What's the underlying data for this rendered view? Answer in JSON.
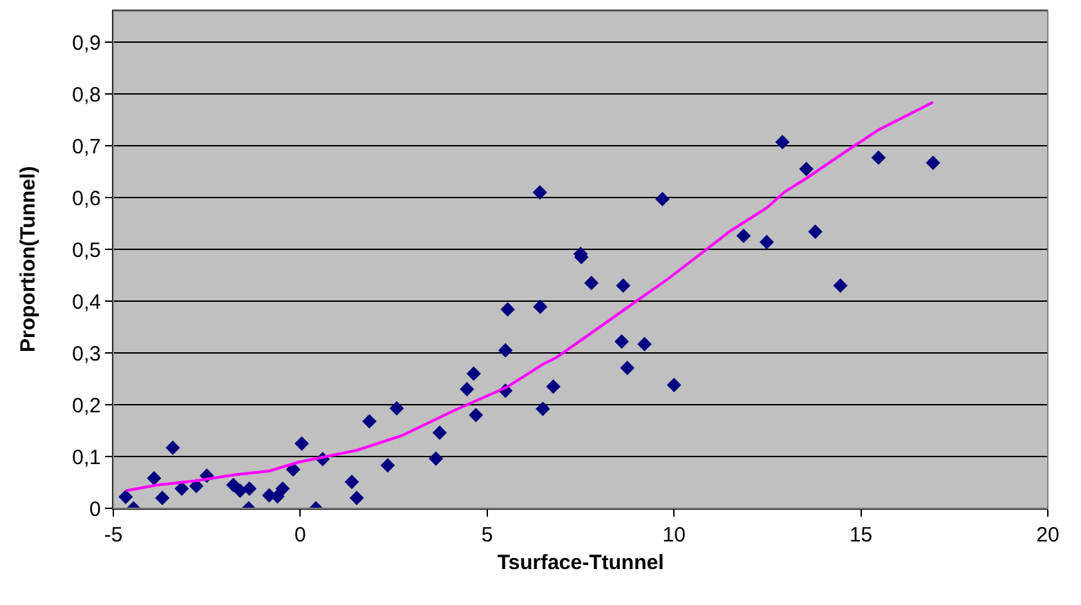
{
  "chart_data": {
    "type": "scatter",
    "xlabel": "Tsurface-Ttunnel",
    "ylabel": "Proportion(Tunnel)",
    "xlim": [
      -5,
      20
    ],
    "xticks": [
      -5,
      0,
      5,
      10,
      15,
      20
    ],
    "ylim": [
      0,
      0.96
    ],
    "yticks": [
      {
        "value": 0,
        "label": "0"
      },
      {
        "value": 0.1,
        "label": "0,1"
      },
      {
        "value": 0.2,
        "label": "0,2"
      },
      {
        "value": 0.3,
        "label": "0,3"
      },
      {
        "value": 0.4,
        "label": "0,4"
      },
      {
        "value": 0.5,
        "label": "0,5"
      },
      {
        "value": 0.6,
        "label": "0,6"
      },
      {
        "value": 0.7,
        "label": "0,7"
      },
      {
        "value": 0.8,
        "label": "0,8"
      },
      {
        "value": 0.9,
        "label": "0,9"
      }
    ],
    "grid": "y",
    "series": [
      {
        "type": "scatter",
        "marker": "diamond",
        "color": "#000080",
        "x": [
          -4.67,
          -4.46,
          -3.91,
          -3.69,
          -3.41,
          -3.17,
          -2.78,
          -2.5,
          -1.79,
          -1.61,
          -1.36,
          -1.38,
          -0.83,
          -0.61,
          -0.47,
          -0.19,
          0.04,
          0.42,
          0.6,
          1.38,
          1.51,
          1.85,
          2.34,
          2.58,
          3.63,
          3.73,
          4.46,
          4.64,
          4.7,
          5.49,
          5.49,
          5.55,
          6.42,
          6.49,
          6.77,
          7.5,
          7.52,
          7.79,
          8.64,
          8.6,
          8.75,
          9.21,
          10.0,
          6.41,
          9.69,
          12.9,
          13.54,
          11.86,
          12.48,
          13.78,
          14.45,
          15.47,
          16.93
        ],
        "values": [
          0.022,
          0.0,
          0.058,
          0.02,
          0.117,
          0.038,
          0.043,
          0.063,
          0.045,
          0.034,
          0.038,
          0.0,
          0.025,
          0.023,
          0.038,
          0.075,
          0.125,
          0.0,
          0.095,
          0.051,
          0.02,
          0.168,
          0.083,
          0.193,
          0.096,
          0.146,
          0.23,
          0.26,
          0.18,
          0.305,
          0.227,
          0.384,
          0.389,
          0.192,
          0.235,
          0.491,
          0.485,
          0.435,
          0.43,
          0.322,
          0.271,
          0.317,
          0.238,
          0.61,
          0.597,
          0.707,
          0.655,
          0.526,
          0.514,
          0.534,
          0.43,
          0.677,
          0.667
        ]
      },
      {
        "type": "line",
        "marker": "none",
        "line_style": "solid",
        "color": "#ff00ff",
        "x": [
          -4.66,
          -3.83,
          -2.8,
          -1.73,
          -0.83,
          -0.05,
          1.51,
          2.71,
          4.15,
          5.53,
          6.49,
          6.85,
          7.56,
          8.64,
          9.84,
          11.52,
          12.48,
          12.96,
          13.56,
          14.64,
          15.48,
          16.93
        ],
        "values": [
          0.034,
          0.045,
          0.053,
          0.065,
          0.072,
          0.089,
          0.112,
          0.14,
          0.19,
          0.234,
          0.278,
          0.291,
          0.327,
          0.382,
          0.443,
          0.536,
          0.58,
          0.611,
          0.638,
          0.691,
          0.731,
          0.784
        ]
      }
    ]
  }
}
